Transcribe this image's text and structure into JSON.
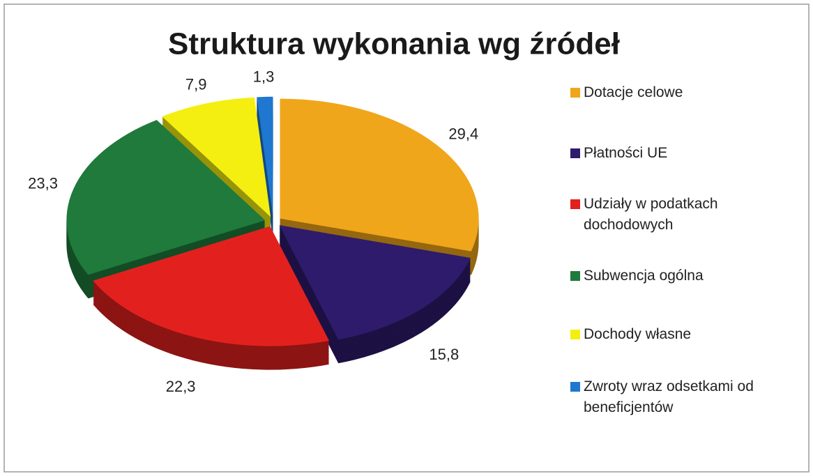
{
  "chart_data": {
    "type": "pie",
    "title": "Struktura wykonania wg źródeł",
    "categories": [
      "Dotacje celowe",
      "Płatności UE",
      "Udziały w podatkach dochodowych",
      "Subwencja ogólna",
      "Dochody własne",
      "Zwroty wraz odsetkami od beneficjentów"
    ],
    "values": [
      29.4,
      15.8,
      22.3,
      23.3,
      7.9,
      1.3
    ],
    "value_labels": [
      "29,4",
      "15,8",
      "22,3",
      "23,3",
      "7,9",
      "1,3"
    ],
    "colors": [
      "#f0a61a",
      "#2f1b6c",
      "#e2211f",
      "#1f7a3b",
      "#f4ef10",
      "#1f77cf"
    ]
  }
}
